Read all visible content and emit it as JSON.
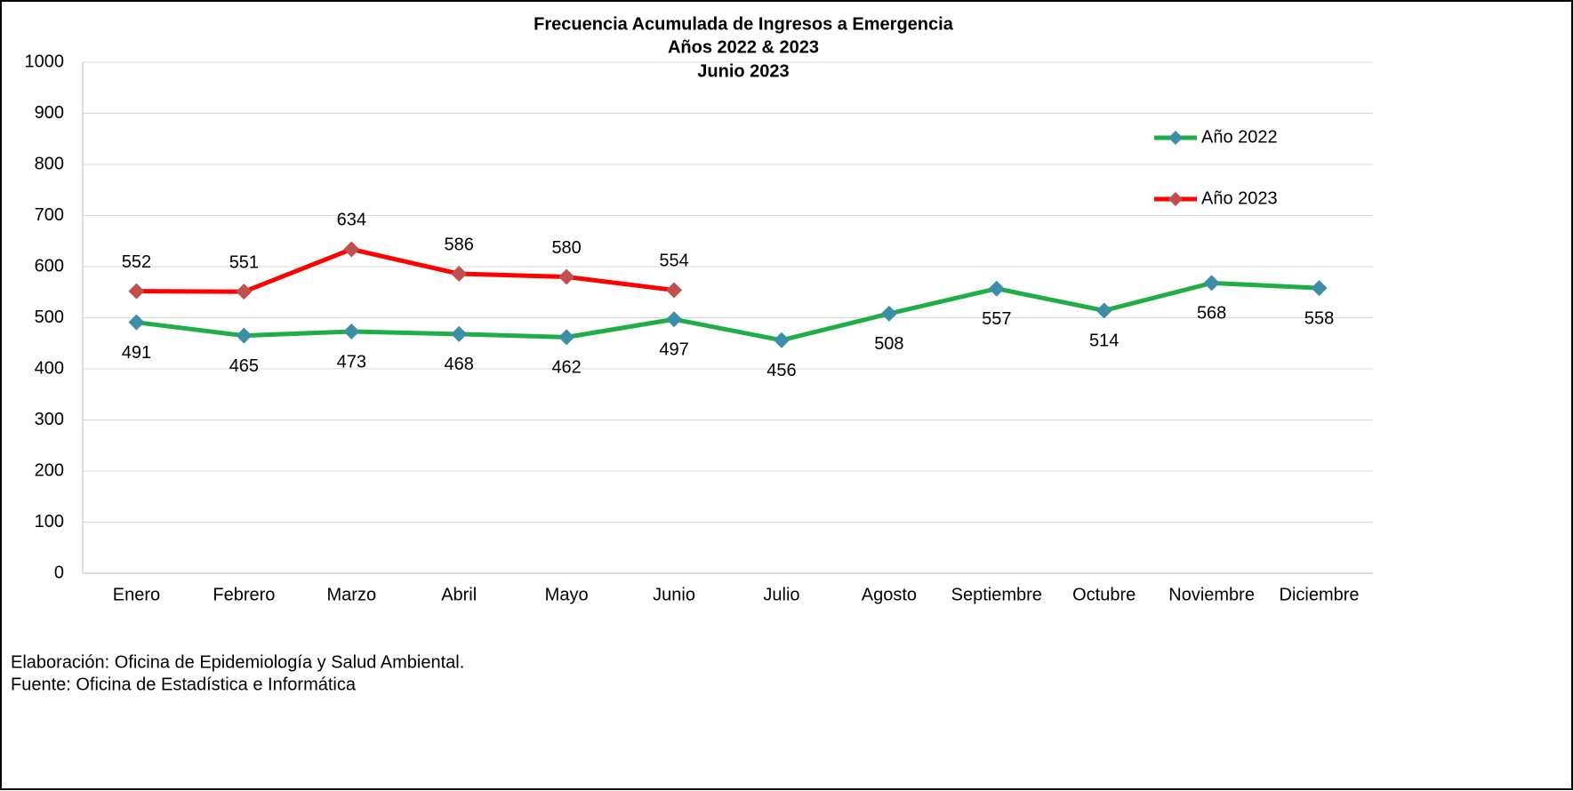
{
  "chart_data": {
    "type": "line",
    "title": [
      "Frecuencia Acumulada de Ingresos a Emergencia",
      "Años 2022 & 2023",
      "Junio 2023"
    ],
    "categories": [
      "Enero",
      "Febrero",
      "Marzo",
      "Abril",
      "Mayo",
      "Junio",
      "Julio",
      "Agosto",
      "Septiembre",
      "Octubre",
      "Noviembre",
      "Diciembre"
    ],
    "series": [
      {
        "name": "Año 2022",
        "color": "#1fae45",
        "marker_color": "#3b8ea5",
        "label_position": "below",
        "values": [
          491,
          465,
          473,
          468,
          462,
          497,
          456,
          508,
          557,
          514,
          568,
          558
        ]
      },
      {
        "name": "Año 2023",
        "color": "#ff0000",
        "marker_color": "#c0504d",
        "label_position": "above",
        "values": [
          552,
          551,
          634,
          586,
          580,
          554,
          null,
          null,
          null,
          null,
          null,
          null
        ]
      }
    ],
    "ylim": [
      0,
      1000
    ],
    "yticks": [
      0,
      100,
      200,
      300,
      400,
      500,
      600,
      700,
      800,
      900,
      1000
    ],
    "grid": true,
    "legend": "upper right",
    "notes": [
      "Elaboración: Oficina de Epidemiología y Salud Ambiental.",
      "Fuente:  Oficina de Estadística e Informática"
    ]
  }
}
